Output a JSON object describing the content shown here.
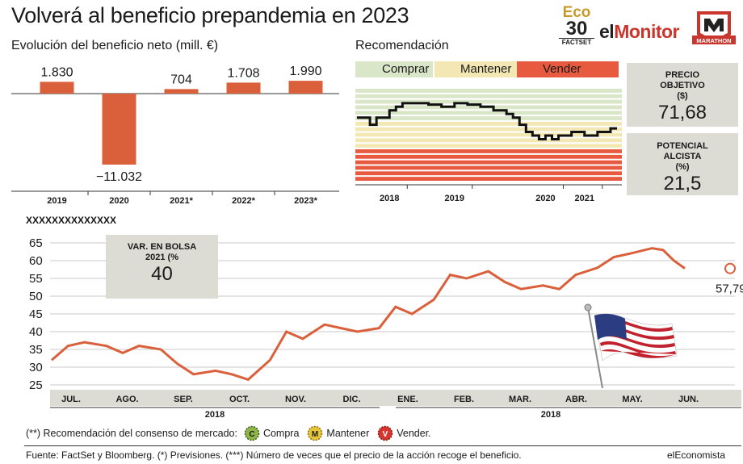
{
  "header": {
    "title": "Volverá al beneficio prepandemia en 2023",
    "logo_eco": "Eco",
    "logo_30": "30",
    "logo_factset": "FACTSET",
    "logo_el": "el",
    "logo_monitor": "Monitor",
    "logo_marathon": "MARATHON"
  },
  "colors": {
    "bar": "#d9603b",
    "line": "#d9603b",
    "comprar": "#d9e6c7",
    "mantener": "#f3e8b4",
    "vender": "#e85a40",
    "panel": "#dcdcd4"
  },
  "chart_data": [
    {
      "type": "bar",
      "title": "Evolución del beneficio neto (mill. €)",
      "categories": [
        "2019",
        "2020",
        "2021*",
        "2022*",
        "2023*"
      ],
      "values": [
        1830,
        -11032,
        704,
        1708,
        1990
      ],
      "value_labels": [
        "1.830",
        "−11.032",
        "704",
        "1.708",
        "1.990"
      ]
    },
    {
      "type": "line",
      "title": "Recomendación",
      "legend": [
        "Comprar",
        "Mantener",
        "Vender"
      ],
      "x_tick_labels": [
        "2018",
        "2019",
        "2020",
        "2021"
      ],
      "bands": {
        "comprar_rows": 6,
        "mantener_rows": 5,
        "vender_rows": 6
      },
      "x": [
        2017.5,
        2017.6,
        2017.7,
        2017.8,
        2017.9,
        2018.0,
        2018.1,
        2018.2,
        2018.4,
        2018.6,
        2018.8,
        2019.0,
        2019.2,
        2019.4,
        2019.6,
        2019.8,
        2019.9,
        2020.0,
        2020.1,
        2020.2,
        2020.3,
        2020.4,
        2020.5,
        2020.6,
        2020.8,
        2021.0,
        2021.2,
        2021.4,
        2021.5
      ],
      "y": [
        4.6,
        4.6,
        4.5,
        4.6,
        4.6,
        4.7,
        4.75,
        4.8,
        4.8,
        4.78,
        4.75,
        4.8,
        4.78,
        4.75,
        4.7,
        4.65,
        4.6,
        4.5,
        4.4,
        4.35,
        4.3,
        4.35,
        4.3,
        4.35,
        4.4,
        4.35,
        4.4,
        4.45,
        4.45
      ]
    },
    {
      "type": "line",
      "title": "XXXXXXXXXXXXXX",
      "y_tick_labels": [
        "65",
        "60",
        "55",
        "50",
        "45",
        "40",
        "35",
        "30",
        "25"
      ],
      "ylim": [
        24,
        66
      ],
      "month_labels": [
        "JUL.",
        "AGO.",
        "SEP.",
        "OCT.",
        "NOV.",
        "DIC.",
        "ENE.",
        "FEB.",
        "MAR.",
        "ABR.",
        "MAY.",
        "JUN."
      ],
      "year_labels": [
        "2018",
        "2018"
      ],
      "last_value": 57.79,
      "last_value_label": "57,79",
      "x": [
        0,
        0.3,
        0.6,
        1,
        1.3,
        1.6,
        2,
        2.3,
        2.6,
        3,
        3.3,
        3.6,
        4,
        4.3,
        4.6,
        5,
        5.3,
        5.6,
        6,
        6.3,
        6.6,
        7,
        7.3,
        7.6,
        8,
        8.3,
        8.6,
        9,
        9.3,
        9.6,
        10,
        10.3,
        10.6,
        11,
        11.2,
        11.4,
        11.6
      ],
      "y": [
        32,
        36,
        37,
        36,
        34,
        36,
        35,
        31,
        28,
        29,
        28,
        26.5,
        32,
        40,
        38,
        42,
        41,
        40,
        41,
        47,
        45,
        49,
        56,
        55,
        57,
        54,
        52,
        53,
        52,
        56,
        58,
        61,
        62,
        63.5,
        63,
        60,
        57.79
      ]
    }
  ],
  "recommendation_box": {
    "precio_label_1": "PRECIO",
    "precio_label_2": "OBJETIVO",
    "precio_label_3": "($)",
    "precio_value": "71,68",
    "potencial_label_1": "POTENCIAL",
    "potencial_label_2": "ALCISTA",
    "potencial_label_3": "(%)",
    "potencial_value": "21,5"
  },
  "var_box": {
    "label_1": "VAR. EN BOLSA",
    "label_2": "2021 (%",
    "value": "40"
  },
  "consensus_legend": {
    "intro": "(**) Recomendación del consenso de mercado:",
    "items": [
      {
        "letter": "C",
        "label": "Compra",
        "color": "#8db54a"
      },
      {
        "letter": "M",
        "label": "Mantener",
        "color": "#e8c63a"
      },
      {
        "letter": "V",
        "label": "Vender.",
        "color": "#d7362e"
      }
    ]
  },
  "footer": {
    "source": "Fuente: FactSet y Bloomberg. (*) Previsiones. (***) Número de veces que el precio de la acción recoge el beneficio.",
    "brand": "elEconomista"
  }
}
